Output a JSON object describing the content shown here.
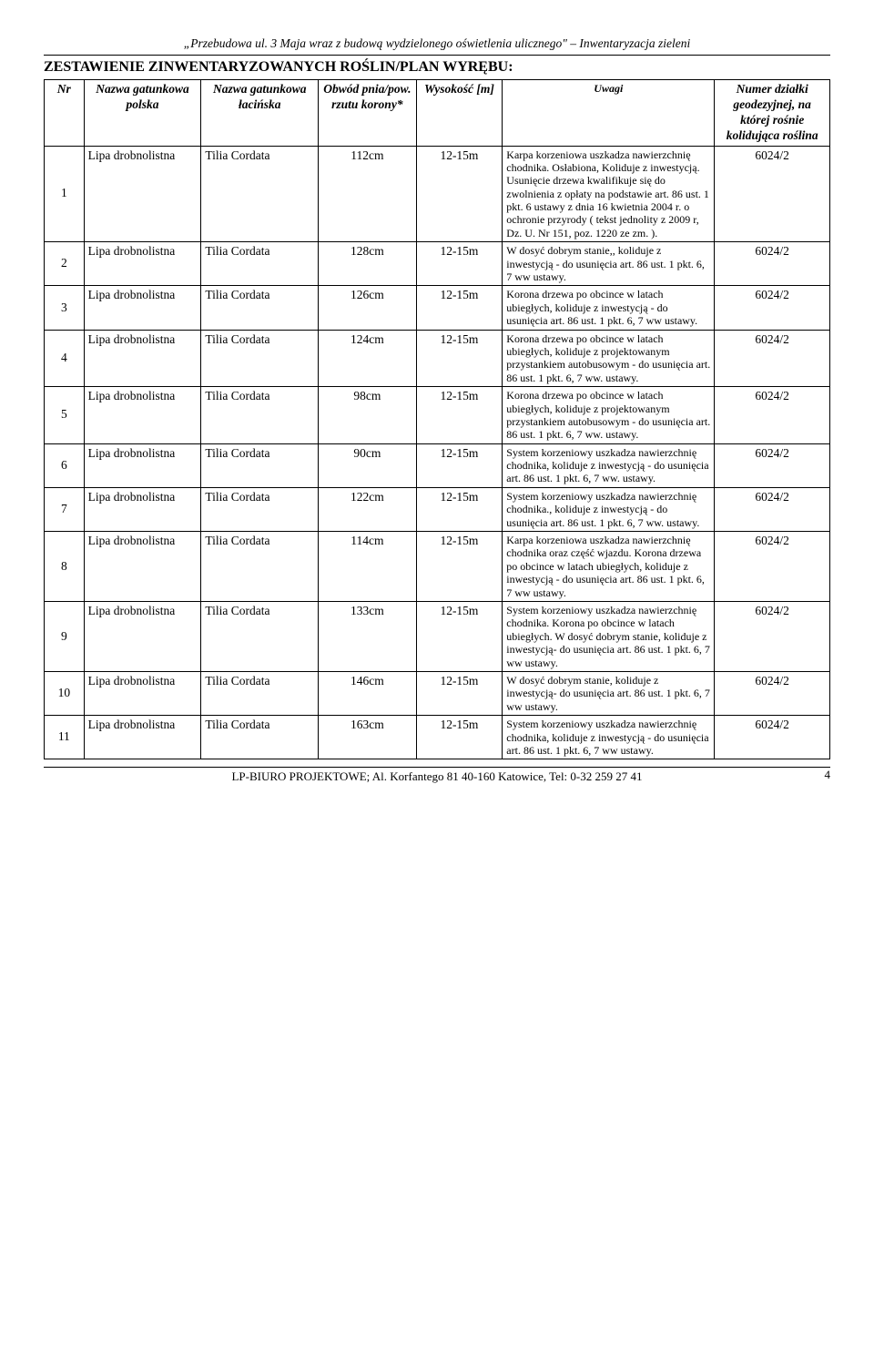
{
  "header_text": "„Przebudowa ul. 3 Maja wraz z budową wydzielonego oświetlenia ulicznego\" – Inwentaryzacja zieleni",
  "title": "ZESTAWIENIE ZINWENTARYZOWANYCH ROŚLIN/PLAN WYRĘBU:",
  "columns": {
    "nr": "Nr",
    "nazwa_pl": "Nazwa gatunkowa polska",
    "nazwa_la": "Nazwa gatunkowa łacińska",
    "obwod": "Obwód pnia/pow. rzutu korony*",
    "wysokosc": "Wysokość [m]",
    "uwagi": "Uwagi",
    "numer": "Numer działki geodezyjnej, na której rośnie kolidująca roślina"
  },
  "rows": [
    {
      "nr": "1",
      "pl": "Lipa drobnolistna",
      "la": "Tilia Cordata",
      "ob": "112cm",
      "wy": "12-15m",
      "uw": "Karpa korzeniowa uszkadza nawierzchnię chodnika. Osłabiona, Koliduje z inwestycją. Usunięcie drzewa kwalifikuje się do zwolnienia z opłaty na podstawie art. 86 ust. 1 pkt. 6 ustawy z dnia 16 kwietnia 2004 r. o ochronie przyrody ( tekst jednolity z 2009 r, Dz. U. Nr 151, poz. 1220 ze zm. ).",
      "nd": "6024/2"
    },
    {
      "nr": "2",
      "pl": "Lipa drobnolistna",
      "la": "Tilia Cordata",
      "ob": "128cm",
      "wy": "12-15m",
      "uw": "W dosyć dobrym stanie,, koliduje z inwestycją - do usunięcia art. 86 ust. 1 pkt. 6, 7 ww ustawy.",
      "nd": "6024/2"
    },
    {
      "nr": "3",
      "pl": "Lipa drobnolistna",
      "la": "Tilia Cordata",
      "ob": "126cm",
      "wy": "12-15m",
      "uw": "Korona drzewa po obcince w latach ubiegłych, koliduje z inwestycją - do usunięcia art. 86 ust. 1 pkt. 6, 7 ww ustawy.",
      "nd": "6024/2"
    },
    {
      "nr": "4",
      "pl": "Lipa drobnolistna",
      "la": "Tilia Cordata",
      "ob": "124cm",
      "wy": "12-15m",
      "uw": "Korona drzewa po obcince w latach ubiegłych, koliduje z projektowanym przystankiem autobusowym - do usunięcia art. 86 ust. 1 pkt. 6, 7 ww. ustawy.",
      "nd": "6024/2"
    },
    {
      "nr": "5",
      "pl": "Lipa drobnolistna",
      "la": "Tilia Cordata",
      "ob": "98cm",
      "wy": "12-15m",
      "uw": "Korona drzewa po obcince w latach ubiegłych, koliduje z projektowanym przystankiem autobusowym - do usunięcia art. 86 ust. 1 pkt. 6, 7 ww. ustawy.",
      "nd": "6024/2"
    },
    {
      "nr": "6",
      "pl": "Lipa drobnolistna",
      "la": "Tilia Cordata",
      "ob": "90cm",
      "wy": "12-15m",
      "uw": "System korzeniowy uszkadza nawierzchnię chodnika, koliduje z inwestycją - do usunięcia art. 86 ust. 1 pkt. 6, 7 ww. ustawy.",
      "nd": "6024/2"
    },
    {
      "nr": "7",
      "pl": "Lipa drobnolistna",
      "la": "Tilia Cordata",
      "ob": "122cm",
      "wy": "12-15m",
      "uw": "System korzeniowy uszkadza nawierzchnię chodnika., koliduje z inwestycją - do usunięcia art. 86 ust. 1 pkt. 6, 7 ww. ustawy.",
      "nd": "6024/2"
    },
    {
      "nr": "8",
      "pl": "Lipa drobnolistna",
      "la": "Tilia Cordata",
      "ob": "114cm",
      "wy": "12-15m",
      "uw": "Karpa korzeniowa uszkadza nawierzchnię chodnika oraz część wjazdu. Korona drzewa po obcince w latach ubiegłych, koliduje z inwestycją - do usunięcia art. 86 ust. 1 pkt. 6, 7 ww ustawy.",
      "nd": "6024/2"
    },
    {
      "nr": "9",
      "pl": "Lipa drobnolistna",
      "la": "Tilia Cordata",
      "ob": "133cm",
      "wy": "12-15m",
      "uw": "System korzeniowy uszkadza nawierzchnię chodnika. Korona po obcince w latach ubiegłych. W dosyć dobrym stanie, koliduje z inwestycją- do usunięcia art. 86 ust. 1 pkt. 6, 7 ww ustawy.",
      "nd": "6024/2"
    },
    {
      "nr": "10",
      "pl": "Lipa drobnolistna",
      "la": "Tilia Cordata",
      "ob": "146cm",
      "wy": "12-15m",
      "uw": "W dosyć dobrym stanie, koliduje z inwestycją- do usunięcia art. 86 ust. 1 pkt. 6, 7 ww ustawy.",
      "nd": "6024/2"
    },
    {
      "nr": "11",
      "pl": "Lipa drobnolistna",
      "la": "Tilia Cordata",
      "ob": "163cm",
      "wy": "12-15m",
      "uw": "System korzeniowy uszkadza nawierzchnię chodnika, koliduje z inwestycją - do usunięcia art. 86 ust. 1 pkt. 6, 7 ww ustawy.",
      "nd": "6024/2"
    }
  ],
  "footer": "LP-BIURO PROJEKTOWE; Al. Korfantego 81 40-160 Katowice, Tel: 0-32 259 27 41",
  "page_number": "4"
}
